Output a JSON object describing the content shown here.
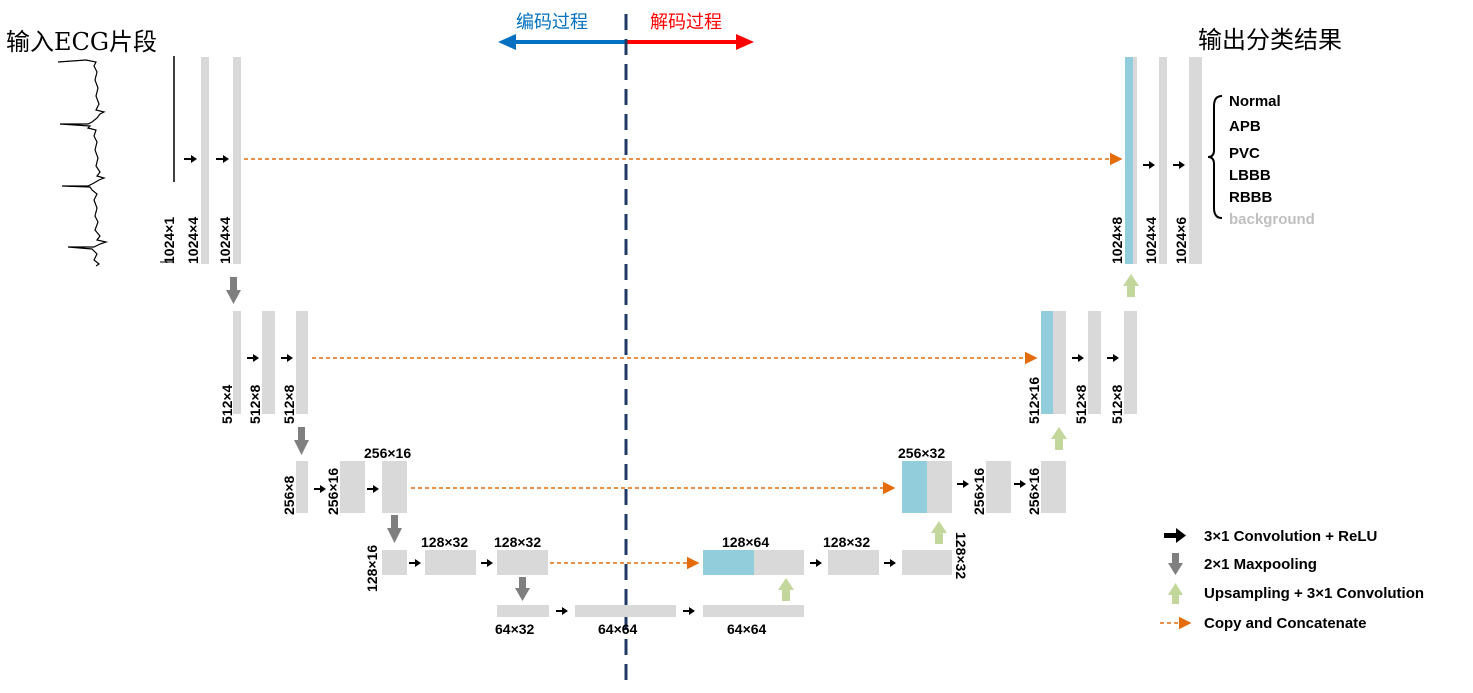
{
  "header": {
    "input_title": "输入ECG片段",
    "output_title": "输出分类结果",
    "encode_label": "编码过程",
    "decode_label": "解码过程"
  },
  "colors": {
    "block": "#d9d9d9",
    "concat": "#92cddc",
    "conv_arrow": "#000000",
    "pool_arrow": "#7f7f7f",
    "up_arrow": "#c3d69b",
    "copy_line": "#e46c0a",
    "divider": "#1f3864",
    "encode": "#0070c0",
    "decode": "#ff0000",
    "background_class": "#bfbfbf"
  },
  "blocks": {
    "enc1": [
      "1024×1",
      "1024×4",
      "1024×4"
    ],
    "enc2": [
      "512×4",
      "512×8",
      "512×8"
    ],
    "enc3": [
      "256×8",
      "256×16",
      "256×16"
    ],
    "enc4": [
      "128×16",
      "128×32",
      "128×32"
    ],
    "bottom": [
      "64×32",
      "64×64",
      "64×64"
    ],
    "dec4": [
      "128×64",
      "128×32",
      "128×32"
    ],
    "dec3": [
      "256×32",
      "256×16",
      "256×16"
    ],
    "dec2": [
      "512×16",
      "512×8",
      "512×8"
    ],
    "dec1": [
      "1024×8",
      "1024×4",
      "1024×6"
    ]
  },
  "classes": [
    "Normal",
    "APB",
    "PVC",
    "LBBB",
    "RBBB",
    "background"
  ],
  "legend": {
    "conv": "3×1 Convolution + ReLU",
    "pool": "2×1 Maxpooling",
    "up": "Upsampling + 3×1 Convolution",
    "copy": "Copy and Concatenate"
  }
}
